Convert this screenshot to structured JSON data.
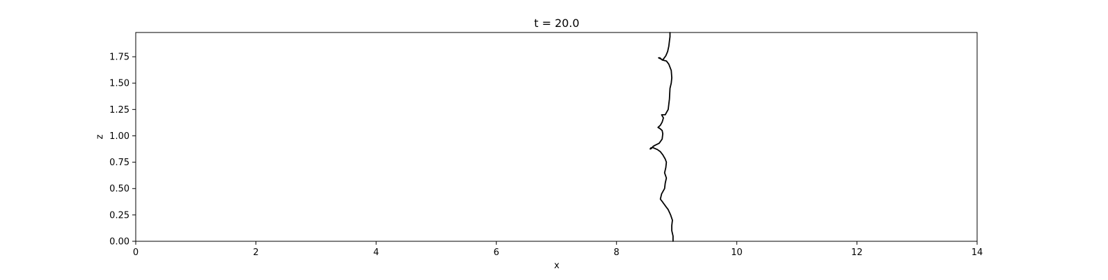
{
  "chart_data": {
    "type": "line",
    "title": "t = 20.0",
    "xlabel": "x",
    "ylabel": "z",
    "xlim": [
      0,
      14
    ],
    "ylim": [
      0,
      1.98
    ],
    "grid": false,
    "xticks": [
      0,
      2,
      4,
      6,
      8,
      10,
      12,
      14
    ],
    "xtick_labels": [
      "0",
      "2",
      "4",
      "6",
      "8",
      "10",
      "12",
      "14"
    ],
    "yticks": [
      0,
      0.25,
      0.5,
      0.75,
      1.0,
      1.25,
      1.5,
      1.75
    ],
    "ytick_labels": [
      "0.00",
      "0.25",
      "0.50",
      "0.75",
      "1.00",
      "1.25",
      "1.50",
      "1.75"
    ],
    "series": [
      {
        "color": "#000000",
        "x": [
          8.94,
          8.94,
          8.92,
          8.92,
          8.93,
          8.9,
          8.86,
          8.82,
          8.77,
          8.73,
          8.75,
          8.8,
          8.81,
          8.83,
          8.8,
          8.82,
          8.83,
          8.81,
          8.77,
          8.73,
          8.68,
          8.64,
          8.6,
          8.57,
          8.56,
          8.58,
          8.61,
          8.64,
          8.71,
          8.76,
          8.77,
          8.76,
          8.72,
          8.69,
          8.73,
          8.76,
          8.78,
          8.76,
          8.75,
          8.81,
          8.86,
          8.88,
          8.89,
          8.91,
          8.92,
          8.91,
          8.87,
          8.83,
          8.76,
          8.72,
          8.7,
          8.77,
          8.82,
          8.85,
          8.87,
          8.88,
          8.89,
          8.89
        ],
        "y": [
          0.0,
          0.05,
          0.1,
          0.15,
          0.2,
          0.25,
          0.3,
          0.33,
          0.37,
          0.4,
          0.45,
          0.5,
          0.55,
          0.6,
          0.65,
          0.7,
          0.75,
          0.78,
          0.82,
          0.85,
          0.87,
          0.88,
          0.89,
          0.885,
          0.875,
          0.88,
          0.9,
          0.91,
          0.93,
          0.97,
          1.02,
          1.05,
          1.07,
          1.08,
          1.1,
          1.13,
          1.17,
          1.19,
          1.2,
          1.2,
          1.25,
          1.35,
          1.45,
          1.5,
          1.55,
          1.62,
          1.68,
          1.71,
          1.72,
          1.74,
          1.74,
          1.72,
          1.76,
          1.8,
          1.85,
          1.9,
          1.94,
          1.98
        ]
      }
    ]
  }
}
